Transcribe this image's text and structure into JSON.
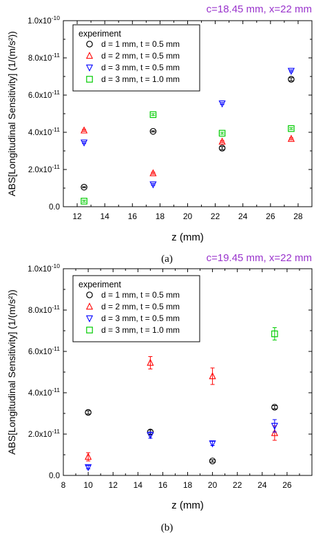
{
  "chart_data": [
    {
      "type": "scatter",
      "title": "c=18.45 mm, x=22 mm",
      "title_color": "#9933cc",
      "caption": "(a)",
      "xlabel": "z (mm)",
      "ylabel": "ABS[Longitudinal Sensitivity] (1/(m/s²))",
      "xlim": [
        11,
        29
      ],
      "ylim": [
        0,
        1e-10
      ],
      "x_ticks": [
        "12",
        "14",
        "16",
        "18",
        "20",
        "22",
        "24",
        "26",
        "28"
      ],
      "y_ticks": [
        "0.0",
        "2.0x10⁻¹¹",
        "4.0x10⁻¹¹",
        "6.0x10⁻¹¹",
        "8.0x10⁻¹¹",
        "1.0x10⁻¹⁰"
      ],
      "grid": false,
      "legend": {
        "placement": "top-left",
        "title": "experiment",
        "labels": [
          "d = 1 mm, t = 0.5 mm",
          "d = 2 mm, t = 0.5 mm",
          "d = 3 mm, t = 0.5 mm",
          "d = 3 mm, t = 1.0 mm"
        ]
      },
      "series": [
        {
          "marker": "circle",
          "color": "#000000",
          "x": [
            12.5,
            17.5,
            22.5,
            27.5
          ],
          "y": [
            1.05e-11,
            4.05e-11,
            3.15e-11,
            6.85e-11
          ],
          "err": [
            3e-13,
            3e-13,
            8e-13,
            8e-13
          ]
        },
        {
          "marker": "triangle-up",
          "color": "#ff0000",
          "x": [
            12.5,
            17.5,
            22.5,
            27.5
          ],
          "y": [
            4.1e-11,
            1.8e-11,
            3.5e-11,
            3.65e-11
          ],
          "err": [
            5e-13,
            5e-13,
            5e-13,
            5e-13
          ]
        },
        {
          "marker": "triangle-down",
          "color": "#0000ff",
          "x": [
            12.5,
            17.5,
            22.5,
            27.5
          ],
          "y": [
            3.45e-11,
            1.2e-11,
            5.55e-11,
            7.3e-11
          ],
          "err": [
            5e-13,
            5e-13,
            5e-13,
            5e-13
          ]
        },
        {
          "marker": "square",
          "color": "#00cc00",
          "x": [
            12.5,
            17.5,
            22.5,
            27.5
          ],
          "y": [
            3e-12,
            4.95e-11,
            3.95e-11,
            4.2e-11
          ],
          "err": [
            5e-13,
            5e-13,
            5e-13,
            5e-13
          ]
        }
      ]
    },
    {
      "type": "scatter",
      "title": "c=19.45 mm, x=22 mm",
      "title_color": "#9933cc",
      "caption": "(b)",
      "xlabel": "z (mm)",
      "ylabel": "ABS[Longitudinal Sensitivity] (1/(m/s²))",
      "xlim": [
        8,
        28
      ],
      "ylim": [
        0,
        1e-10
      ],
      "x_ticks": [
        "8",
        "10",
        "12",
        "14",
        "16",
        "18",
        "20",
        "22",
        "24",
        "26"
      ],
      "y_ticks": [
        "0.0",
        "2.0x10⁻¹¹",
        "4.0x10⁻¹¹",
        "6.0x10⁻¹¹",
        "8.0x10⁻¹¹",
        "1.0x10⁻¹⁰"
      ],
      "grid": false,
      "legend": {
        "placement": "top-left",
        "title": "experiment",
        "labels": [
          "d = 1 mm, t = 0.5 mm",
          "d = 2 mm, t = 0.5 mm",
          "d = 3 mm, t = 0.5 mm",
          "d = 3 mm, t = 1.0 mm"
        ]
      },
      "series": [
        {
          "marker": "circle",
          "color": "#000000",
          "x": [
            10,
            15,
            20,
            25
          ],
          "y": [
            3.05e-11,
            2.1e-11,
            7e-12,
            3.3e-11
          ],
          "err": [
            8e-13,
            1e-12,
            5e-13,
            8e-13
          ]
        },
        {
          "marker": "triangle-up",
          "color": "#ff0000",
          "x": [
            10,
            15,
            20,
            25
          ],
          "y": [
            9e-12,
            5.45e-11,
            4.8e-11,
            2.05e-11
          ],
          "err": [
            2e-12,
            3e-12,
            4e-12,
            3.5e-12
          ]
        },
        {
          "marker": "triangle-down",
          "color": "#0000ff",
          "x": [
            10,
            15,
            20,
            25
          ],
          "y": [
            4e-12,
            1.95e-11,
            1.55e-11,
            2.4e-11
          ],
          "err": [
            8e-13,
            1.5e-12,
            1e-12,
            3e-12
          ]
        },
        {
          "marker": "square",
          "color": "#00cc00",
          "x": [
            10,
            15,
            20,
            25
          ],
          "y": [
            null,
            null,
            null,
            6.85e-11
          ],
          "err": [
            null,
            null,
            null,
            3e-12
          ]
        }
      ]
    }
  ]
}
